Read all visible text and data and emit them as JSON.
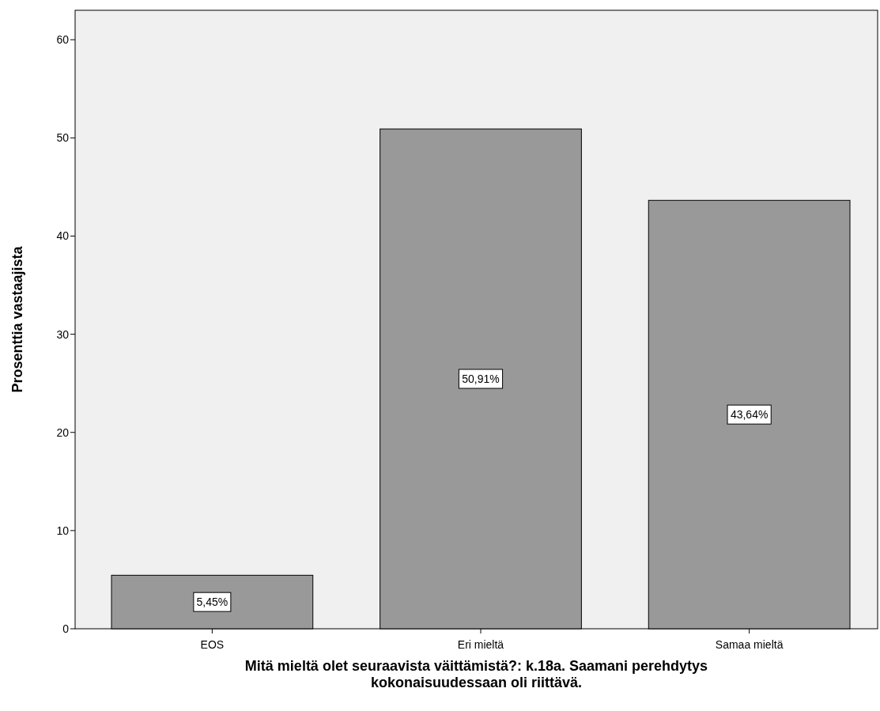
{
  "chart_data": {
    "type": "bar",
    "categories": [
      "EOS",
      "Eri mieltä",
      "Samaa mieltä"
    ],
    "values": [
      5.45,
      50.91,
      43.64
    ],
    "value_labels": [
      "5,45%",
      "50,91%",
      "43,64%"
    ],
    "color": "#999999",
    "ylim": [
      0,
      63
    ],
    "yticks": [
      0,
      10,
      20,
      30,
      40,
      50,
      60
    ],
    "ylabel": "Prosenttia vastaajista",
    "xlabel": "Mitä mieltä olet seuraavista väittämistä?: k.18a. Saamani perehdytys kokonaisuudessaan oli riittävä.",
    "grid": false
  }
}
